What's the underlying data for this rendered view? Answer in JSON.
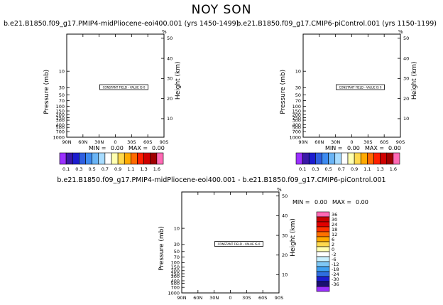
{
  "title": "NOY SON",
  "unit_mark": "%",
  "constant_field_text": "CONSTANT FIELD - VALUE IS 0",
  "x_ticks": [
    "90N",
    "60N",
    "30N",
    "0",
    "30S",
    "60S",
    "90S"
  ],
  "p_ticks": [
    "10",
    "30",
    "50",
    "70",
    "100",
    "150",
    "200",
    "250",
    "300",
    "400",
    "500",
    "700",
    "1000"
  ],
  "h_ticks": [
    "10",
    "20",
    "30",
    "40",
    "50"
  ],
  "y_label_left": "Pressure (mb)",
  "y_label_right": "Height (km)",
  "chart_data": [
    {
      "type": "heatmap",
      "title": "b.e21.B1850.f09_g17.PMIP4-midPliocene-eoi400.001 (yrs 1450-1499)",
      "stats": {
        "min_label": "MIN =",
        "min": "0.00",
        "max_label": "MAX =",
        "max": "0.00"
      },
      "colorbar": {
        "orientation": "horizontal",
        "labels": [
          "0.1",
          "0.3",
          "0.5",
          "0.7",
          "0.9",
          "1.1",
          "1.3",
          "1.6"
        ],
        "colors": [
          "#9b30ff",
          "#3a18a8",
          "#1c1ccf",
          "#2f5fe0",
          "#3e8bf0",
          "#6ab4f5",
          "#a8dcff",
          "#ffffff",
          "#ffffb0",
          "#ffd94d",
          "#ffaa00",
          "#ff6a00",
          "#ff2000",
          "#d00000",
          "#a00000",
          "#ff69b4"
        ]
      },
      "values": "constant 0"
    },
    {
      "type": "heatmap",
      "title": "b.e21.B1850.f09_g17.CMIP6-piControl.001 (yrs 1150-1199)",
      "stats": {
        "min_label": "MIN =",
        "min": "0.00",
        "max_label": "MAX =",
        "max": "0.00"
      },
      "colorbar": {
        "orientation": "horizontal",
        "labels": [
          "0.1",
          "0.3",
          "0.5",
          "0.7",
          "0.9",
          "1.1",
          "1.3",
          "1.6"
        ],
        "colors": [
          "#9b30ff",
          "#3a18a8",
          "#1c1ccf",
          "#2f5fe0",
          "#3e8bf0",
          "#6ab4f5",
          "#a8dcff",
          "#ffffff",
          "#ffffb0",
          "#ffd94d",
          "#ffaa00",
          "#ff6a00",
          "#ff2000",
          "#d00000",
          "#a00000",
          "#ff69b4"
        ]
      },
      "values": "constant 0"
    },
    {
      "type": "heatmap",
      "title": "b.e21.B1850.f09_g17.PMIP4-midPliocene-eoi400.001  -  b.e21.B1850.f09_g17.CMIP6-piControl.001",
      "stats": {
        "min_label": "MIN =",
        "min": "0.00",
        "max_label": "MAX =",
        "max": "0.00"
      },
      "colorbar": {
        "orientation": "vertical",
        "labels": [
          "36",
          "30",
          "24",
          "18",
          "12",
          "6",
          "2",
          "0",
          "-2",
          "-6",
          "-12",
          "-18",
          "-24",
          "-30",
          "-36"
        ],
        "colors": [
          "#ff69b4",
          "#c80000",
          "#e00000",
          "#ff3000",
          "#ff7000",
          "#ffaa00",
          "#ffd94d",
          "#ffffb0",
          "#ffffff",
          "#c8f0ff",
          "#7ec8f5",
          "#3ea0f0",
          "#2f6fe0",
          "#1c1ccf",
          "#1a1070",
          "#9b30ff"
        ]
      },
      "values": "constant 0"
    }
  ]
}
